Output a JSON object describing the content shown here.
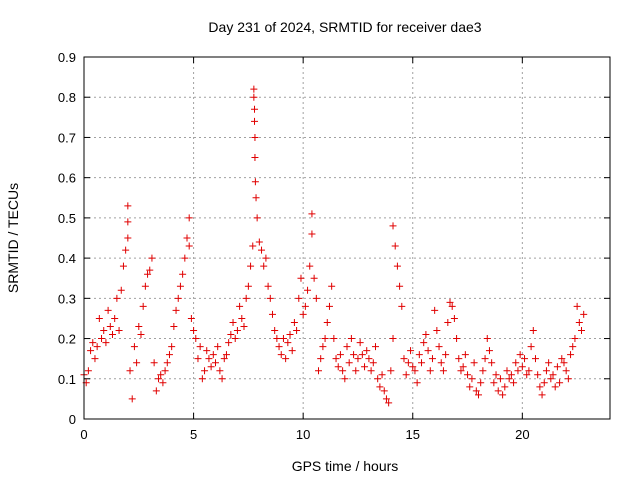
{
  "chart_data": {
    "type": "scatter",
    "title": "Day 231 of 2024, SRMTID for receiver dae3",
    "xlabel": "GPS time / hours",
    "ylabel": "SRMTID / TECUs",
    "xlim": [
      0,
      24.0
    ],
    "ylim": [
      0,
      0.9
    ],
    "xticks": [
      0,
      5,
      10,
      15,
      20
    ],
    "xtick_labels": [
      "0",
      "5",
      "10",
      "15",
      "20"
    ],
    "yticks": [
      0,
      0.1,
      0.2,
      0.3,
      0.4,
      0.5,
      0.6,
      0.7,
      0.8,
      0.9
    ],
    "ytick_labels": [
      "0",
      "0.1",
      "0.2",
      "0.3",
      "0.4",
      "0.5",
      "0.6",
      "0.7",
      "0.8",
      "0.9"
    ],
    "grid": true,
    "marker": "plus",
    "color": "#e00000",
    "series": [
      {
        "name": "SRMTID",
        "x": [
          0.0,
          0.1,
          0.2,
          0.3,
          0.4,
          0.5,
          0.6,
          0.7,
          0.8,
          0.9,
          1.0,
          1.1,
          1.2,
          1.3,
          1.4,
          1.5,
          1.6,
          1.7,
          1.8,
          1.9,
          2.0,
          2.0,
          2.0,
          2.1,
          2.2,
          2.3,
          2.4,
          2.5,
          2.6,
          2.7,
          2.8,
          2.9,
          3.0,
          3.1,
          3.2,
          3.3,
          3.4,
          3.5,
          3.6,
          3.7,
          3.8,
          3.9,
          4.0,
          4.1,
          4.2,
          4.3,
          4.4,
          4.5,
          4.6,
          4.7,
          4.8,
          4.8,
          4.9,
          5.0,
          5.1,
          5.2,
          5.3,
          5.4,
          5.5,
          5.6,
          5.7,
          5.8,
          5.9,
          6.0,
          6.1,
          6.2,
          6.3,
          6.4,
          6.5,
          6.6,
          6.7,
          6.8,
          6.9,
          7.0,
          7.1,
          7.2,
          7.3,
          7.4,
          7.5,
          7.6,
          7.7,
          7.75,
          7.75,
          7.78,
          7.78,
          7.8,
          7.8,
          7.82,
          7.85,
          7.9,
          8.0,
          8.1,
          8.2,
          8.3,
          8.4,
          8.5,
          8.6,
          8.7,
          8.8,
          8.9,
          9.0,
          9.1,
          9.2,
          9.3,
          9.4,
          9.5,
          9.6,
          9.7,
          9.8,
          9.9,
          10.0,
          10.1,
          10.2,
          10.3,
          10.4,
          10.4,
          10.5,
          10.6,
          10.7,
          10.8,
          10.9,
          11.0,
          11.1,
          11.2,
          11.3,
          11.4,
          11.5,
          11.6,
          11.7,
          11.8,
          11.9,
          12.0,
          12.1,
          12.2,
          12.3,
          12.4,
          12.5,
          12.6,
          12.7,
          12.8,
          12.9,
          13.0,
          13.1,
          13.2,
          13.3,
          13.4,
          13.5,
          13.6,
          13.7,
          13.8,
          13.9,
          14.0,
          14.1,
          14.1,
          14.2,
          14.3,
          14.4,
          14.5,
          14.6,
          14.7,
          14.8,
          14.9,
          15.0,
          15.1,
          15.2,
          15.3,
          15.4,
          15.5,
          15.6,
          15.7,
          15.8,
          15.9,
          16.0,
          16.1,
          16.2,
          16.3,
          16.4,
          16.5,
          16.6,
          16.7,
          16.8,
          16.9,
          17.0,
          17.1,
          17.2,
          17.3,
          17.4,
          17.5,
          17.6,
          17.7,
          17.8,
          17.9,
          18.0,
          18.1,
          18.2,
          18.3,
          18.4,
          18.5,
          18.6,
          18.7,
          18.8,
          18.9,
          19.0,
          19.1,
          19.2,
          19.3,
          19.4,
          19.5,
          19.6,
          19.7,
          19.8,
          19.9,
          20.0,
          20.1,
          20.2,
          20.3,
          20.4,
          20.5,
          20.6,
          20.7,
          20.8,
          20.9,
          21.0,
          21.1,
          21.2,
          21.3,
          21.4,
          21.5,
          21.6,
          21.7,
          21.8,
          21.9,
          22.0,
          22.1,
          22.2,
          22.3,
          22.4,
          22.5,
          22.6,
          22.7,
          22.8
        ],
        "y": [
          0.11,
          0.09,
          0.12,
          0.17,
          0.19,
          0.15,
          0.18,
          0.25,
          0.2,
          0.22,
          0.19,
          0.27,
          0.23,
          0.21,
          0.25,
          0.3,
          0.22,
          0.32,
          0.38,
          0.42,
          0.53,
          0.49,
          0.45,
          0.12,
          0.05,
          0.18,
          0.14,
          0.23,
          0.21,
          0.28,
          0.33,
          0.36,
          0.37,
          0.4,
          0.14,
          0.07,
          0.1,
          0.11,
          0.09,
          0.12,
          0.14,
          0.16,
          0.18,
          0.23,
          0.27,
          0.3,
          0.33,
          0.36,
          0.4,
          0.45,
          0.5,
          0.43,
          0.25,
          0.22,
          0.2,
          0.15,
          0.18,
          0.1,
          0.12,
          0.17,
          0.15,
          0.13,
          0.16,
          0.14,
          0.18,
          0.12,
          0.1,
          0.15,
          0.16,
          0.19,
          0.21,
          0.24,
          0.2,
          0.22,
          0.28,
          0.25,
          0.23,
          0.3,
          0.33,
          0.38,
          0.43,
          0.82,
          0.8,
          0.77,
          0.74,
          0.65,
          0.7,
          0.59,
          0.55,
          0.5,
          0.44,
          0.42,
          0.38,
          0.4,
          0.33,
          0.3,
          0.26,
          0.22,
          0.2,
          0.18,
          0.16,
          0.2,
          0.15,
          0.19,
          0.21,
          0.17,
          0.24,
          0.22,
          0.3,
          0.35,
          0.26,
          0.28,
          0.32,
          0.38,
          0.51,
          0.46,
          0.35,
          0.3,
          0.12,
          0.15,
          0.18,
          0.2,
          0.24,
          0.28,
          0.33,
          0.2,
          0.15,
          0.13,
          0.16,
          0.12,
          0.1,
          0.18,
          0.14,
          0.2,
          0.16,
          0.12,
          0.15,
          0.19,
          0.16,
          0.13,
          0.17,
          0.15,
          0.12,
          0.14,
          0.18,
          0.1,
          0.08,
          0.11,
          0.07,
          0.05,
          0.04,
          0.12,
          0.2,
          0.48,
          0.43,
          0.38,
          0.33,
          0.28,
          0.15,
          0.11,
          0.14,
          0.17,
          0.13,
          0.12,
          0.09,
          0.16,
          0.14,
          0.19,
          0.21,
          0.17,
          0.12,
          0.15,
          0.27,
          0.22,
          0.18,
          0.14,
          0.12,
          0.16,
          0.24,
          0.29,
          0.28,
          0.25,
          0.2,
          0.15,
          0.12,
          0.13,
          0.16,
          0.11,
          0.08,
          0.1,
          0.14,
          0.07,
          0.06,
          0.09,
          0.12,
          0.15,
          0.2,
          0.17,
          0.14,
          0.09,
          0.11,
          0.07,
          0.1,
          0.06,
          0.08,
          0.12,
          0.1,
          0.11,
          0.09,
          0.14,
          0.12,
          0.16,
          0.13,
          0.15,
          0.11,
          0.12,
          0.18,
          0.22,
          0.15,
          0.11,
          0.08,
          0.06,
          0.09,
          0.12,
          0.14,
          0.1,
          0.11,
          0.08,
          0.13,
          0.09,
          0.15,
          0.14,
          0.12,
          0.1,
          0.16,
          0.18,
          0.2,
          0.28,
          0.24,
          0.22,
          0.26
        ]
      }
    ]
  }
}
